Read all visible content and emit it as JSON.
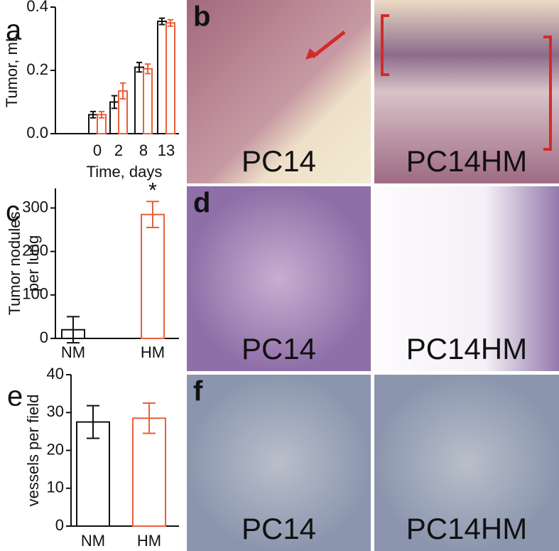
{
  "chart_data": [
    {
      "type": "bar",
      "panel": "a",
      "ylabel": "Tumor, mL",
      "xlabel": "Time, days",
      "categories": [
        "0",
        "2",
        "8",
        "13"
      ],
      "series": [
        {
          "color": "#111111",
          "values": [
            0.06,
            0.1,
            0.21,
            0.355
          ],
          "errors": [
            0.01,
            0.02,
            0.015,
            0.01
          ]
        },
        {
          "color": "#e8603a",
          "values": [
            0.06,
            0.135,
            0.205,
            0.35
          ],
          "errors": [
            0.01,
            0.025,
            0.015,
            0.01
          ]
        }
      ],
      "ylim": [
        0,
        0.4
      ],
      "yticks": [
        {
          "value": 0,
          "label": "0.0"
        },
        {
          "value": 0.2,
          "label": "0.2"
        },
        {
          "value": 0.4,
          "label": "0.4"
        }
      ]
    },
    {
      "type": "bar",
      "panel": "c",
      "ylabel": [
        "Tumor nodules",
        "per lung"
      ],
      "categories": [
        "NM",
        "HM"
      ],
      "colors": [
        "#111111",
        "#e8603a"
      ],
      "values": [
        20,
        285
      ],
      "errors": [
        30,
        30
      ],
      "annotations": [
        null,
        "*"
      ],
      "ylim": [
        0,
        345
      ],
      "yticks": [
        0,
        100,
        200,
        300
      ]
    },
    {
      "type": "bar",
      "panel": "e",
      "ylabel": "vessels per field",
      "categories": [
        "NM",
        "HM"
      ],
      "colors": [
        "#111111",
        "#e8603a"
      ],
      "values": [
        27.5,
        28.5
      ],
      "errors": [
        4.3,
        4
      ],
      "ylim": [
        0,
        40
      ],
      "yticks": [
        0,
        10,
        20,
        30,
        40
      ]
    }
  ],
  "images": [
    {
      "panel": "b",
      "captions": [
        "PC14",
        "PC14HM"
      ]
    },
    {
      "panel": "d",
      "captions": [
        "PC14",
        "PC14HM"
      ]
    },
    {
      "panel": "f",
      "captions": [
        "PC14",
        "PC14HM"
      ]
    }
  ]
}
